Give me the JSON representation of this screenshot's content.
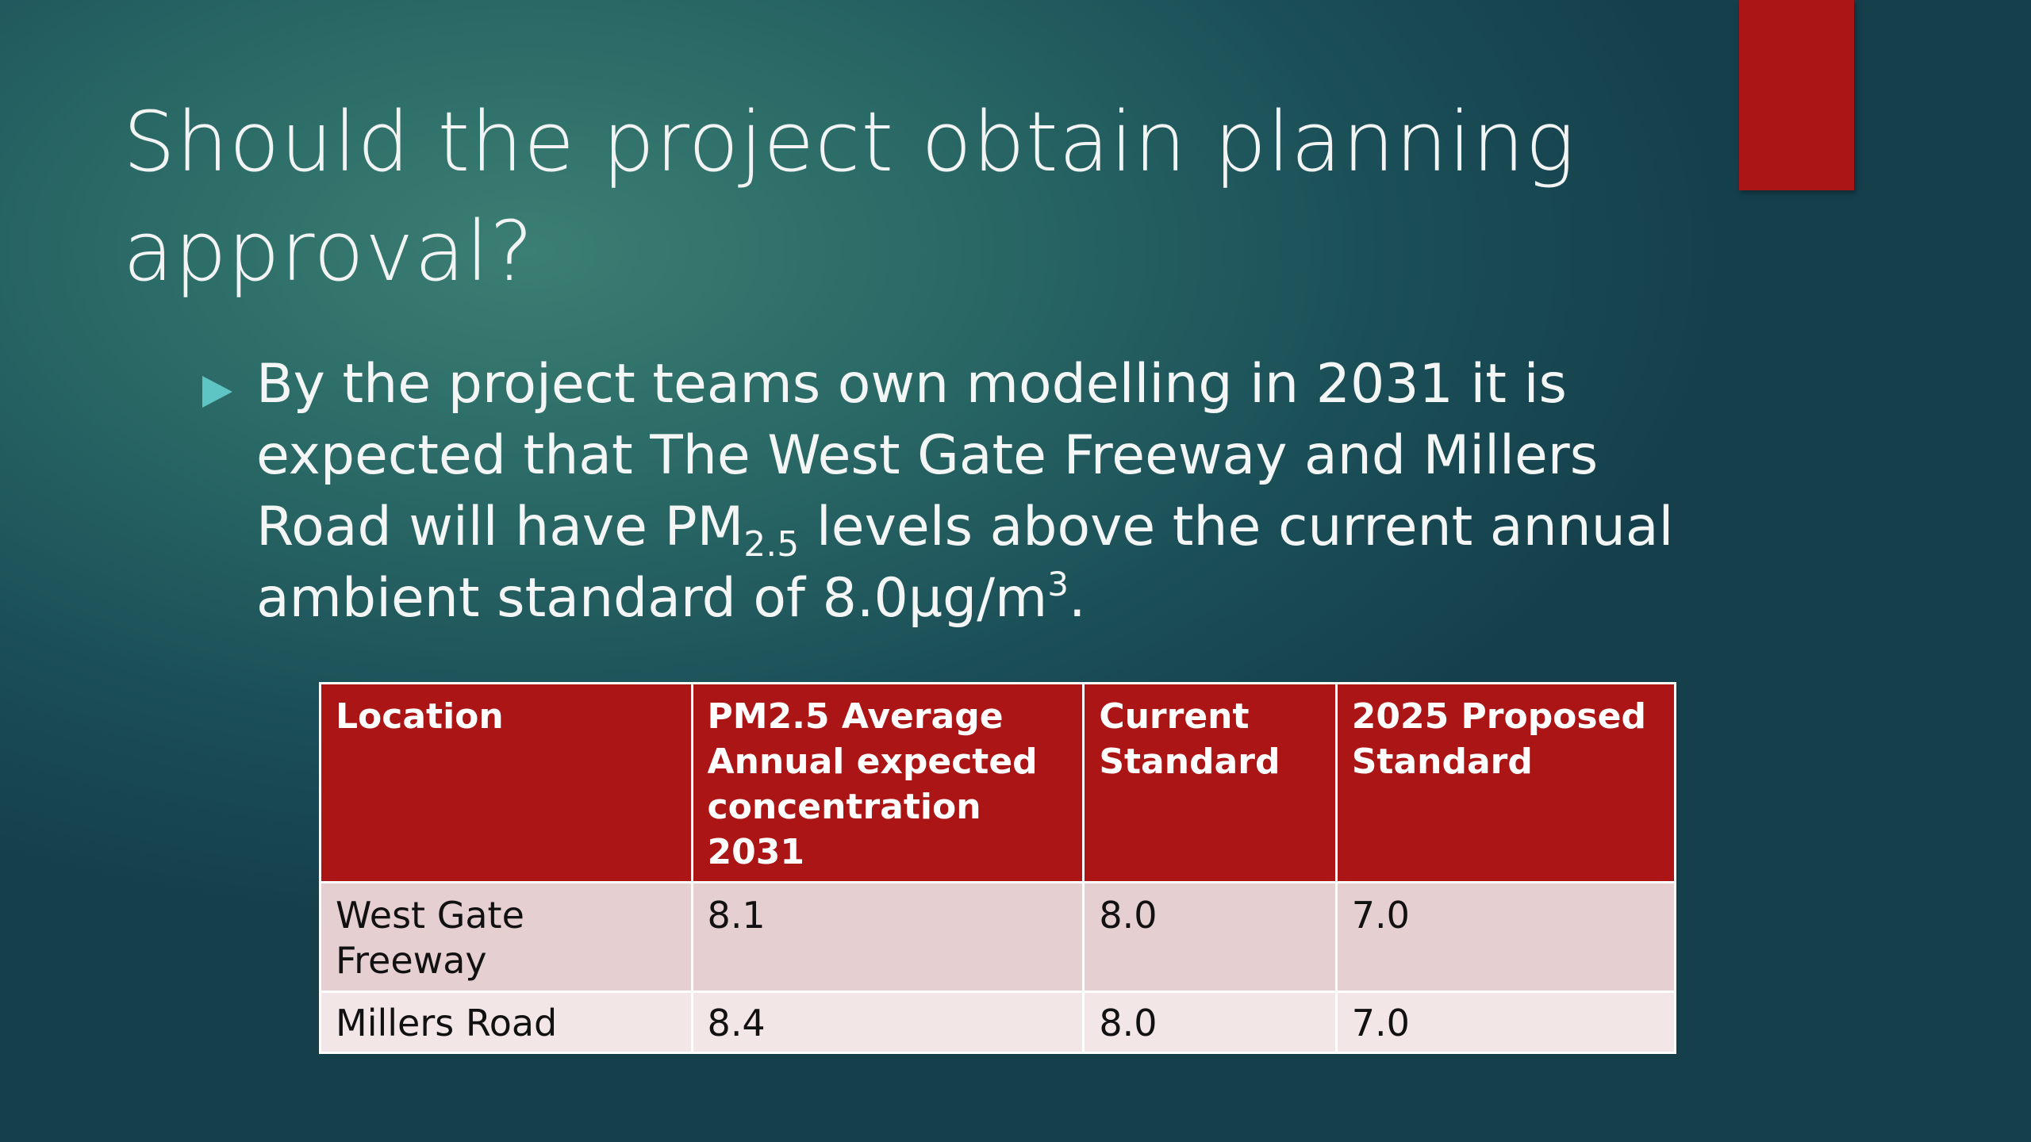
{
  "slide": {
    "title": "Should the project obtain planning approval?",
    "bullet": {
      "text_before_sub": "By the project teams own modelling in 2031 it is expected that The West Gate Freeway and Millers Road will have PM",
      "subscript": "2.5",
      "text_after_sub": " levels above the current annual ambient standard of 8.0µg/m",
      "superscript": "3",
      "text_end": "."
    },
    "table": {
      "headers": [
        "Location",
        "PM2.5 Average Annual expected concentration 2031",
        "Current Standard",
        "2025 Proposed Standard"
      ],
      "rows": [
        [
          "West Gate Freeway",
          "8.1",
          "8.0",
          "7.0"
        ],
        [
          "Millers Road",
          "8.4",
          "8.0",
          "7.0"
        ]
      ]
    },
    "colors": {
      "accent": "#ac1515",
      "bullet_marker": "#5fc4c4",
      "row_shade_1": "#e6cfd0",
      "row_shade_2": "#f2e6e6"
    }
  }
}
